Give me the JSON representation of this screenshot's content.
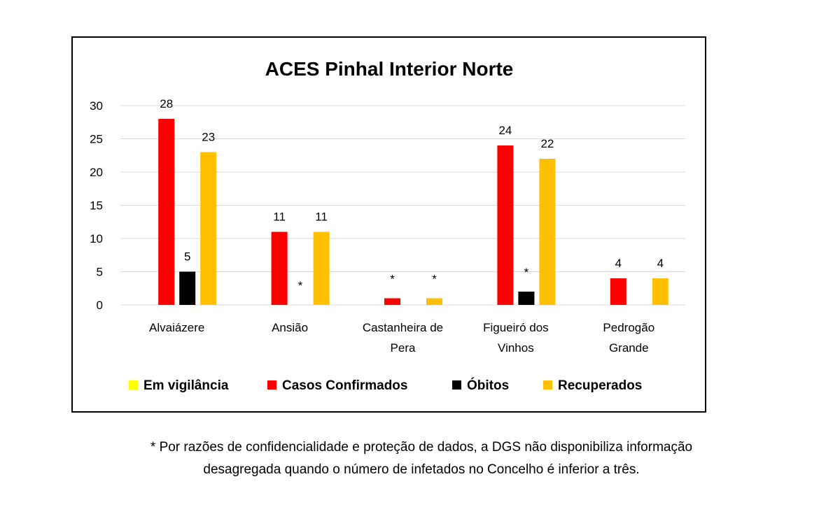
{
  "chart_data": {
    "type": "bar",
    "title": "ACES Pinhal Interior Norte",
    "categories": [
      [
        "Alvaiázere"
      ],
      [
        "Ansião"
      ],
      [
        "Castanheira de",
        "Pera"
      ],
      [
        "Figueiró dos",
        "Vinhos"
      ],
      [
        "Pedrogão",
        "Grande"
      ]
    ],
    "ylim": [
      0,
      30
    ],
    "yticks": [
      0,
      5,
      10,
      15,
      20,
      25,
      30
    ],
    "grid": true,
    "legend_position": "bottom",
    "series": [
      {
        "name": "Em vigilância",
        "color": "#FFFF00",
        "values": [
          null,
          null,
          null,
          null,
          null
        ],
        "labels": [
          "",
          "",
          "",
          "",
          ""
        ]
      },
      {
        "name": "Casos Confirmados",
        "color": "#FF0000",
        "values": [
          28,
          11,
          1,
          24,
          4
        ],
        "labels": [
          "28",
          "11",
          "*",
          "24",
          "4"
        ]
      },
      {
        "name": "Óbitos",
        "color": "#000000",
        "values": [
          5,
          0,
          0,
          2,
          0
        ],
        "labels": [
          "5",
          "*",
          "",
          "*",
          ""
        ]
      },
      {
        "name": "Recuperados",
        "color": "#FFC000",
        "values": [
          23,
          11,
          1,
          22,
          4
        ],
        "labels": [
          "23",
          "11",
          "*",
          "22",
          "4"
        ]
      }
    ]
  },
  "footnote": {
    "line1": "* Por razões de confidencialidade e proteção de dados, a DGS não disponibiliza informação",
    "line2": "desagregada quando o número de infetados no Concelho é inferior a três."
  }
}
